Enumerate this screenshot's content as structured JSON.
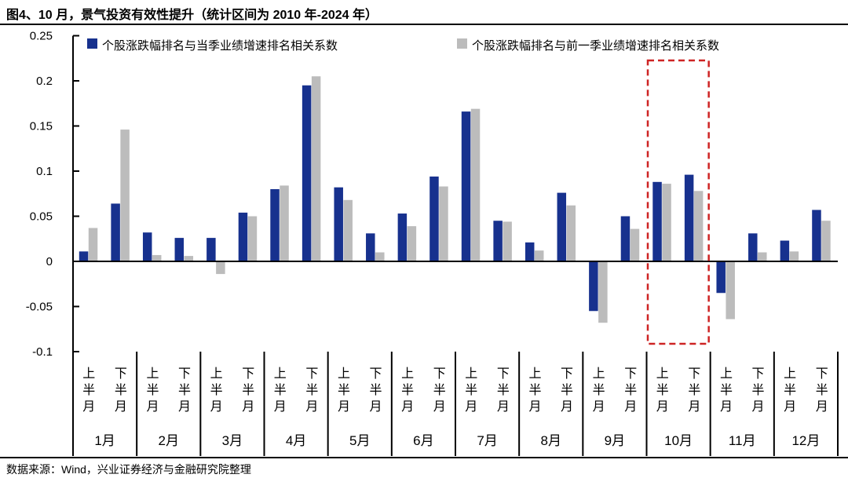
{
  "title": "图4、10 月，景气投资有效性提升（统计区间为 2010 年-2024 年）",
  "source": "数据来源：Wind，兴业证券经济与金融研究院整理",
  "legend": [
    {
      "label": "个股涨跌幅排名与当季业绩增速排名相关系数",
      "color": "#17318E"
    },
    {
      "label": "个股涨跌幅排名与前一季业绩增速排名相关系数",
      "color": "#BCBCBC"
    }
  ],
  "colors": {
    "bar_current": "#17318E",
    "bar_previous": "#BCBCBC",
    "axis": "#000000",
    "highlight": "#CE2424",
    "background": "#ffffff"
  },
  "chart_data": {
    "type": "bar",
    "title": "图4、10 月，景气投资有效性提升（统计区间为 2010 年-2024 年）",
    "months": [
      "1月",
      "2月",
      "3月",
      "4月",
      "5月",
      "6月",
      "7月",
      "8月",
      "9月",
      "10月",
      "11月",
      "12月"
    ],
    "half_labels": [
      "上半月",
      "下半月"
    ],
    "series": [
      {
        "name": "个股涨跌幅排名与当季业绩增速排名相关系数",
        "color": "#17318E",
        "values": [
          0.011,
          0.064,
          0.032,
          0.026,
          0.026,
          0.054,
          0.08,
          0.195,
          0.082,
          0.031,
          0.053,
          0.094,
          0.166,
          0.045,
          0.021,
          0.076,
          -0.055,
          0.05,
          0.088,
          0.096,
          -0.035,
          0.031,
          0.023,
          0.057
        ]
      },
      {
        "name": "个股涨跌幅排名与前一季业绩增速排名相关系数",
        "color": "#BCBCBC",
        "values": [
          0.037,
          0.146,
          0.007,
          0.006,
          -0.014,
          0.05,
          0.084,
          0.205,
          0.068,
          0.01,
          0.039,
          0.083,
          0.169,
          0.044,
          0.012,
          0.062,
          -0.068,
          0.036,
          0.086,
          0.078,
          -0.064,
          0.01,
          0.011,
          0.045
        ]
      }
    ],
    "ylim": [
      -0.1,
      0.25
    ],
    "yticks": [
      "0.25",
      "0.2",
      "0.15",
      "0.1",
      "0.05",
      "0",
      "-0.05",
      "-0.1"
    ],
    "grid": false,
    "legend_position": "top",
    "highlight_month_index": 9,
    "highlight_color": "#CE2424"
  }
}
